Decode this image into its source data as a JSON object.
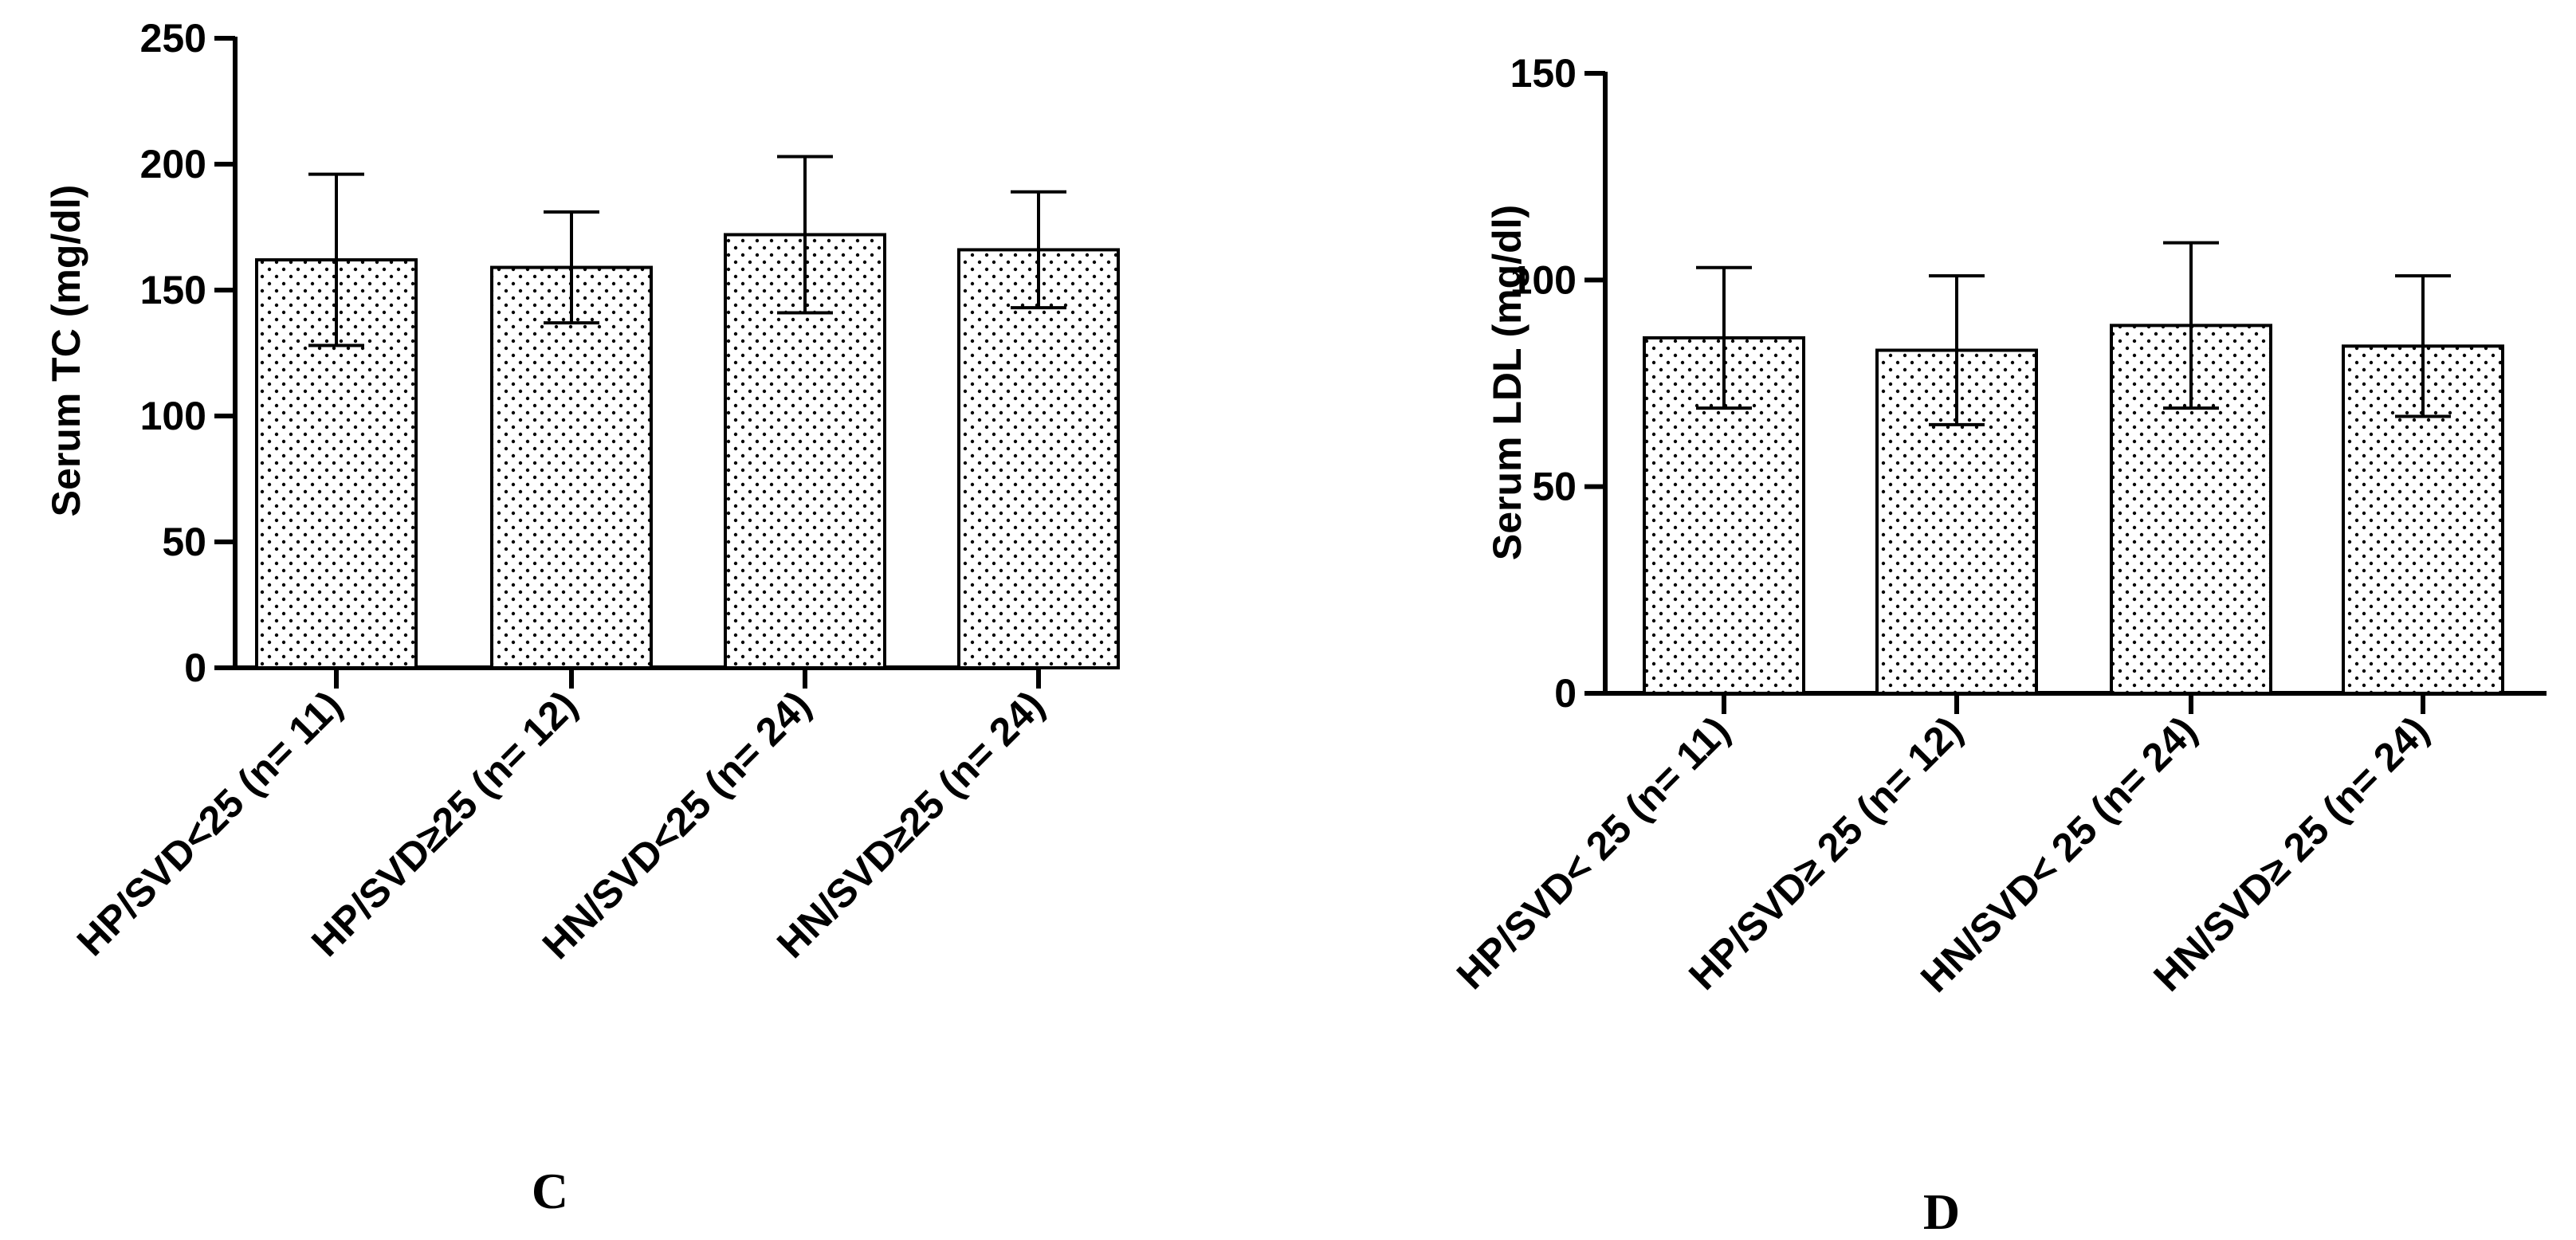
{
  "chart_data": [
    {
      "type": "bar",
      "panel_label": "C",
      "title": "",
      "ylabel": "Serum TC (mg/dl)",
      "xlabel": "",
      "ylim": [
        0,
        250
      ],
      "yticks": [
        "0",
        "50",
        "100",
        "150",
        "200",
        "250"
      ],
      "categories": [
        "HP/SVD<25 (n= 11)",
        "HP/SVD≥25 (n= 12)",
        "HN/SVD<25 (n= 24)",
        "HN/SVD≥25 (n= 24)"
      ],
      "values": [
        162,
        159,
        172,
        166
      ],
      "error": [
        34,
        22,
        31,
        23
      ],
      "grid": false,
      "bar_fill": "dotted"
    },
    {
      "type": "bar",
      "panel_label": "D",
      "title": "",
      "ylabel": "Serum LDL (mg/dl)",
      "xlabel": "",
      "ylim": [
        0,
        150
      ],
      "yticks": [
        "0",
        "50",
        "100",
        "150"
      ],
      "categories": [
        "HP/SVD< 25 (n= 11)",
        "HP/SVD≥ 25 (n= 12)",
        "HN/SVD< 25 (n= 24)",
        "HN/SVD≥ 25 (n= 24)"
      ],
      "values": [
        86,
        83,
        89,
        84
      ],
      "error": [
        17,
        18,
        20,
        17
      ],
      "grid": false,
      "bar_fill": "dotted"
    }
  ],
  "colors": {
    "axis": "#000000",
    "bar_fill": "#ffffff",
    "dots": "#000000"
  }
}
